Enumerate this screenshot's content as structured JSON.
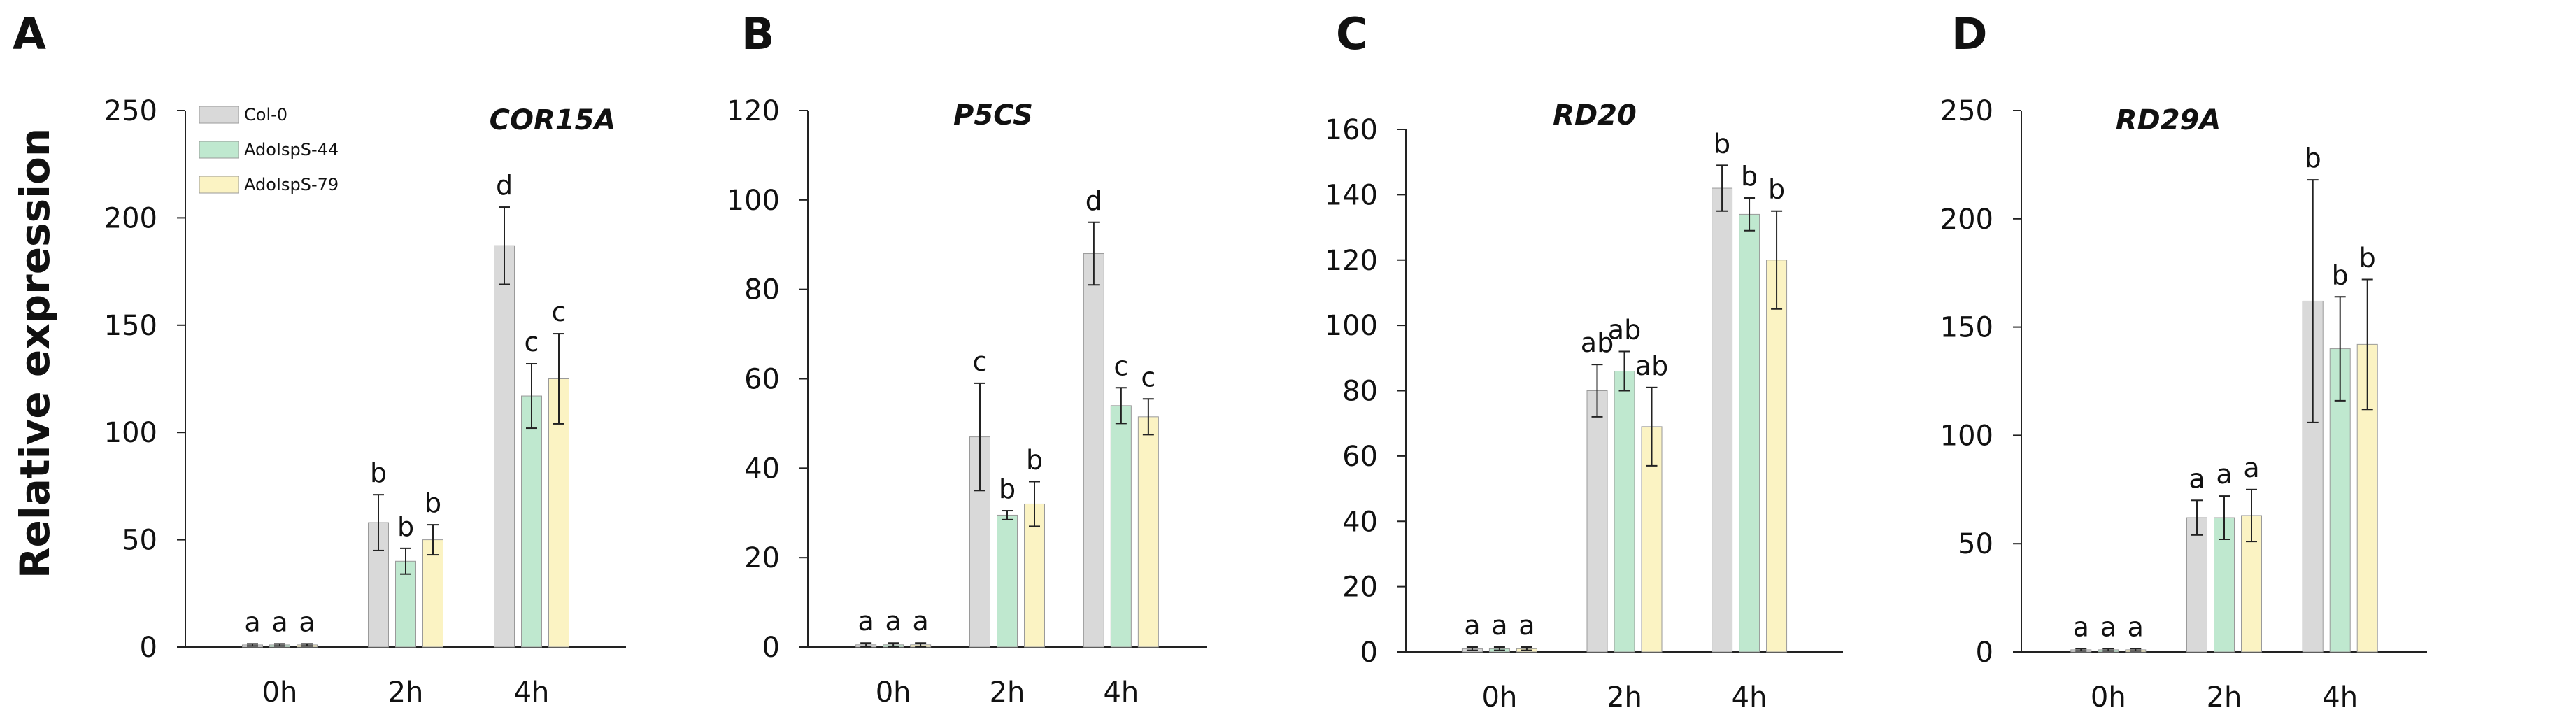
{
  "y_axis_label": "Relative expression",
  "colors": {
    "Col-0": "#d9d9d9",
    "AdoIspS-44": "#bfe8cf",
    "AdoIspS-79": "#fbf3c3",
    "axis": "#222222"
  },
  "legend": [
    "Col-0",
    "AdoIspS-44",
    "AdoIspS-79"
  ],
  "chart_data": [
    {
      "type": "bar",
      "panel": "A",
      "title": "COR15A",
      "ylabel": "Relative expression",
      "categories": [
        "0h",
        "2h",
        "4h"
      ],
      "ylim": [
        0,
        250
      ],
      "yticks": [
        0,
        50,
        100,
        150,
        200,
        250
      ],
      "series": [
        {
          "name": "Col-0",
          "values": [
            1,
            58,
            187
          ],
          "errors": [
            0.5,
            13,
            18
          ],
          "labels": [
            "a",
            "b",
            "d"
          ]
        },
        {
          "name": "AdoIspS-44",
          "values": [
            1,
            40,
            117
          ],
          "errors": [
            0.5,
            6,
            15
          ],
          "labels": [
            "a",
            "b",
            "c"
          ]
        },
        {
          "name": "AdoIspS-79",
          "values": [
            1,
            50,
            125
          ],
          "errors": [
            0.5,
            7,
            21
          ],
          "labels": [
            "a",
            "b",
            "c"
          ]
        }
      ]
    },
    {
      "type": "bar",
      "panel": "B",
      "title": "P5CS",
      "ylabel": "",
      "categories": [
        "0h",
        "2h",
        "4h"
      ],
      "ylim": [
        0,
        120
      ],
      "yticks": [
        0,
        20,
        40,
        60,
        80,
        100,
        120
      ],
      "series": [
        {
          "name": "Col-0",
          "values": [
            0.5,
            47,
            88
          ],
          "errors": [
            0.4,
            12,
            7
          ],
          "labels": [
            "a",
            "c",
            "d"
          ]
        },
        {
          "name": "AdoIspS-44",
          "values": [
            0.5,
            29.5,
            54
          ],
          "errors": [
            0.4,
            1,
            4
          ],
          "labels": [
            "a",
            "b",
            "c"
          ]
        },
        {
          "name": "AdoIspS-79",
          "values": [
            0.5,
            32,
            51.5
          ],
          "errors": [
            0.4,
            5,
            4
          ],
          "labels": [
            "a",
            "b",
            "c"
          ]
        }
      ]
    },
    {
      "type": "bar",
      "panel": "C",
      "title": "RD20",
      "ylabel": "",
      "categories": [
        "0h",
        "2h",
        "4h"
      ],
      "ylim": [
        0,
        160
      ],
      "yticks": [
        0,
        20,
        40,
        60,
        80,
        100,
        120,
        140,
        160
      ],
      "series": [
        {
          "name": "Col-0",
          "values": [
            1,
            80,
            142
          ],
          "errors": [
            0.5,
            8,
            7
          ],
          "labels": [
            "a",
            "ab",
            "b"
          ]
        },
        {
          "name": "AdoIspS-44",
          "values": [
            1,
            86,
            134
          ],
          "errors": [
            0.5,
            6,
            5
          ],
          "labels": [
            "a",
            "ab",
            "b"
          ]
        },
        {
          "name": "AdoIspS-79",
          "values": [
            1,
            69,
            120
          ],
          "errors": [
            0.5,
            12,
            15
          ],
          "labels": [
            "a",
            "ab",
            "b"
          ]
        }
      ]
    },
    {
      "type": "bar",
      "panel": "D",
      "title": "RD29A",
      "ylabel": "",
      "categories": [
        "0h",
        "2h",
        "4h"
      ],
      "ylim": [
        0,
        250
      ],
      "yticks": [
        0,
        50,
        100,
        150,
        200,
        250
      ],
      "series": [
        {
          "name": "Col-0",
          "values": [
            1,
            62,
            162
          ],
          "errors": [
            0.5,
            8,
            56
          ],
          "labels": [
            "a",
            "a",
            "b"
          ]
        },
        {
          "name": "AdoIspS-44",
          "values": [
            1,
            62,
            140
          ],
          "errors": [
            0.5,
            10,
            24
          ],
          "labels": [
            "a",
            "a",
            "b"
          ]
        },
        {
          "name": "AdoIspS-79",
          "values": [
            1,
            63,
            142
          ],
          "errors": [
            0.5,
            12,
            30
          ],
          "labels": [
            "a",
            "a",
            "b"
          ]
        }
      ]
    }
  ]
}
